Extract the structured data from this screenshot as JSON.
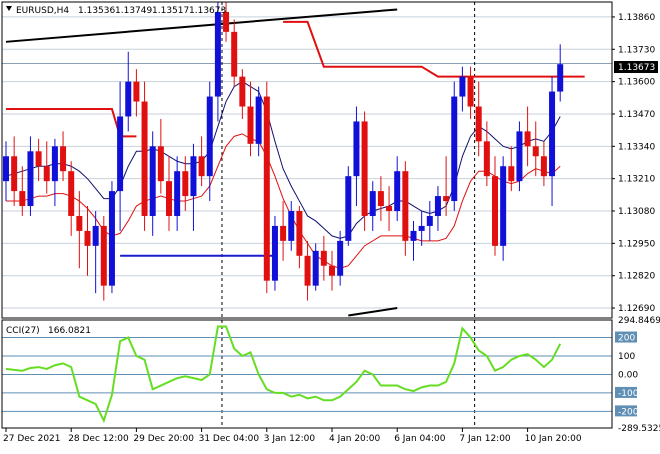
{
  "chart_data": [
    {
      "type": "candlestick",
      "symbol": "EURUSD,H4",
      "ohlc_header": [
        "1.13536",
        "1.13749",
        "1.13517",
        "1.13673"
      ],
      "current_price_label": "1.13673",
      "current_price": 1.13673,
      "ylim": [
        1.1265,
        1.1392
      ],
      "price_ticks": [
        {
          "value": 1.1386,
          "label": "1.13860"
        },
        {
          "value": 1.1373,
          "label": "1.13730"
        },
        {
          "value": 1.136,
          "label": "1.13600"
        },
        {
          "value": 1.1347,
          "label": "1.13470"
        },
        {
          "value": 1.1334,
          "label": "1.13340"
        },
        {
          "value": 1.1321,
          "label": "1.13210"
        },
        {
          "value": 1.1308,
          "label": "1.13080"
        },
        {
          "value": 1.1295,
          "label": "1.12950"
        },
        {
          "value": 1.1282,
          "label": "1.12820"
        },
        {
          "value": 1.1269,
          "label": "1.12690"
        }
      ],
      "x_labels": [
        {
          "index": 0,
          "label": "27 Dec 2021"
        },
        {
          "index": 8,
          "label": "28 Dec 12:00"
        },
        {
          "index": 16,
          "label": "29 Dec 20:00"
        },
        {
          "index": 24,
          "label": "31 Dec 04:00"
        },
        {
          "index": 32,
          "label": "3 Jan 12:00"
        },
        {
          "index": 40,
          "label": "4 Jan 20:00"
        },
        {
          "index": 48,
          "label": "6 Jan 04:00"
        },
        {
          "index": 56,
          "label": "7 Jan 12:00"
        },
        {
          "index": 64,
          "label": "10 Jan 20:00"
        }
      ],
      "separators": [
        26.5,
        57.5
      ],
      "candles": [
        [
          1.132,
          1.1336,
          1.1312,
          1.133
        ],
        [
          1.133,
          1.1338,
          1.131,
          1.1316
        ],
        [
          1.1316,
          1.1326,
          1.1306,
          1.131
        ],
        [
          1.131,
          1.1338,
          1.1306,
          1.1332
        ],
        [
          1.1332,
          1.1337,
          1.132,
          1.1326
        ],
        [
          1.1326,
          1.1336,
          1.1315,
          1.132
        ],
        [
          1.132,
          1.1337,
          1.131,
          1.1334
        ],
        [
          1.1334,
          1.134,
          1.132,
          1.1324
        ],
        [
          1.1324,
          1.1328,
          1.1298,
          1.1306
        ],
        [
          1.1306,
          1.1316,
          1.1285,
          1.13
        ],
        [
          1.13,
          1.131,
          1.1282,
          1.1294
        ],
        [
          1.1294,
          1.1308,
          1.1275,
          1.1302
        ],
        [
          1.1302,
          1.1306,
          1.1272,
          1.1278
        ],
        [
          1.1278,
          1.132,
          1.1275,
          1.1316
        ],
        [
          1.1316,
          1.136,
          1.13,
          1.1346
        ],
        [
          1.1346,
          1.1372,
          1.134,
          1.136
        ],
        [
          1.136,
          1.1365,
          1.1346,
          1.1352
        ],
        [
          1.1352,
          1.136,
          1.13,
          1.1306
        ],
        [
          1.1306,
          1.134,
          1.1298,
          1.1334
        ],
        [
          1.1334,
          1.1345,
          1.1315,
          1.132
        ],
        [
          1.132,
          1.133,
          1.13,
          1.1306
        ],
        [
          1.1306,
          1.133,
          1.13,
          1.1324
        ],
        [
          1.1324,
          1.133,
          1.1308,
          1.1314
        ],
        [
          1.1314,
          1.1335,
          1.13,
          1.133
        ],
        [
          1.133,
          1.1338,
          1.1318,
          1.1322
        ],
        [
          1.1322,
          1.136,
          1.1312,
          1.1354
        ],
        [
          1.1354,
          1.1392,
          1.1344,
          1.1388
        ],
        [
          1.1388,
          1.1392,
          1.1376,
          1.138
        ],
        [
          1.138,
          1.1385,
          1.1358,
          1.1362
        ],
        [
          1.1362,
          1.1365,
          1.1345,
          1.135
        ],
        [
          1.135,
          1.136,
          1.133,
          1.1335
        ],
        [
          1.1335,
          1.1358,
          1.133,
          1.1354
        ],
        [
          1.1354,
          1.136,
          1.1275,
          1.128
        ],
        [
          1.128,
          1.1306,
          1.1276,
          1.1302
        ],
        [
          1.1302,
          1.1312,
          1.1288,
          1.1296
        ],
        [
          1.1296,
          1.1312,
          1.1292,
          1.1308
        ],
        [
          1.1308,
          1.131,
          1.1285,
          1.129
        ],
        [
          1.129,
          1.1296,
          1.1272,
          1.1278
        ],
        [
          1.1278,
          1.1295,
          1.1276,
          1.1292
        ],
        [
          1.1292,
          1.1298,
          1.128,
          1.1286
        ],
        [
          1.1286,
          1.1292,
          1.1276,
          1.1282
        ],
        [
          1.1282,
          1.13,
          1.1278,
          1.1296
        ],
        [
          1.1296,
          1.1326,
          1.1294,
          1.1322
        ],
        [
          1.1322,
          1.135,
          1.131,
          1.1344
        ],
        [
          1.1344,
          1.1348,
          1.13,
          1.1306
        ],
        [
          1.1306,
          1.132,
          1.13,
          1.1316
        ],
        [
          1.1316,
          1.1322,
          1.1304,
          1.131
        ],
        [
          1.131,
          1.1318,
          1.13,
          1.1308
        ],
        [
          1.1308,
          1.133,
          1.1304,
          1.1324
        ],
        [
          1.1324,
          1.1328,
          1.129,
          1.1296
        ],
        [
          1.1296,
          1.1304,
          1.1288,
          1.13
        ],
        [
          1.13,
          1.1308,
          1.1294,
          1.1302
        ],
        [
          1.1302,
          1.1312,
          1.1296,
          1.1306
        ],
        [
          1.1306,
          1.1318,
          1.13,
          1.1314
        ],
        [
          1.1314,
          1.133,
          1.1306,
          1.1312
        ],
        [
          1.1312,
          1.136,
          1.1308,
          1.1354
        ],
        [
          1.1354,
          1.1366,
          1.1348,
          1.1362
        ],
        [
          1.1362,
          1.1366,
          1.1345,
          1.135
        ],
        [
          1.135,
          1.136,
          1.133,
          1.1336
        ],
        [
          1.1336,
          1.1344,
          1.1318,
          1.1322
        ],
        [
          1.1322,
          1.133,
          1.129,
          1.1294
        ],
        [
          1.1294,
          1.133,
          1.1288,
          1.1326
        ],
        [
          1.1326,
          1.1334,
          1.1316,
          1.132
        ],
        [
          1.132,
          1.1344,
          1.1316,
          1.134
        ],
        [
          1.134,
          1.135,
          1.1326,
          1.1334
        ],
        [
          1.1334,
          1.1344,
          1.1322,
          1.133
        ],
        [
          1.133,
          1.1336,
          1.1318,
          1.1322
        ],
        [
          1.1322,
          1.1362,
          1.131,
          1.1356
        ],
        [
          1.1356,
          1.1375,
          1.1352,
          1.1367
        ]
      ],
      "ma_blue": [
        1.1322,
        1.1323,
        1.1324,
        1.1325,
        1.1326,
        1.1326,
        1.1327,
        1.1327,
        1.1326,
        1.1324,
        1.1321,
        1.1317,
        1.1313,
        1.1313,
        1.1318,
        1.1326,
        1.1332,
        1.1332,
        1.1333,
        1.1332,
        1.133,
        1.1328,
        1.1327,
        1.1327,
        1.1328,
        1.1332,
        1.1342,
        1.1352,
        1.1358,
        1.136,
        1.1358,
        1.1356,
        1.1348,
        1.1336,
        1.1325,
        1.1318,
        1.1312,
        1.1306,
        1.1304,
        1.1301,
        1.1298,
        1.1297,
        1.1298,
        1.1303,
        1.1306,
        1.1308,
        1.1309,
        1.131,
        1.1312,
        1.1312,
        1.131,
        1.1308,
        1.1307,
        1.1308,
        1.131,
        1.1318,
        1.133,
        1.1338,
        1.1342,
        1.134,
        1.1337,
        1.1334,
        1.1333,
        1.1334,
        1.1336,
        1.1337,
        1.1336,
        1.134,
        1.1346
      ],
      "ma_red": [
        1.1312,
        1.1312,
        1.1312,
        1.1313,
        1.1314,
        1.1314,
        1.1315,
        1.1315,
        1.1314,
        1.1312,
        1.1309,
        1.1305,
        1.13,
        1.1298,
        1.1299,
        1.1304,
        1.131,
        1.1312,
        1.1313,
        1.1314,
        1.1313,
        1.1312,
        1.1312,
        1.1313,
        1.1314,
        1.1318,
        1.1326,
        1.1334,
        1.1338,
        1.1339,
        1.1337,
        1.1336,
        1.133,
        1.1322,
        1.1313,
        1.1306,
        1.13,
        1.1295,
        1.129,
        1.1288,
        1.1286,
        1.1285,
        1.1286,
        1.129,
        1.1294,
        1.1296,
        1.1298,
        1.1298,
        1.1298,
        1.1298,
        1.1297,
        1.1296,
        1.1296,
        1.1296,
        1.1297,
        1.1302,
        1.1312,
        1.132,
        1.1324,
        1.1324,
        1.1322,
        1.132,
        1.1319,
        1.132,
        1.1323,
        1.1325,
        1.1324,
        1.1323,
        1.1326
      ],
      "channel_upper": {
        "from": [
          0,
          1.1376
        ],
        "to": [
          48,
          1.1389
        ]
      },
      "channel_lower": {
        "from": [
          42,
          1.1266
        ],
        "to": [
          48,
          1.1269
        ]
      },
      "support_line": {
        "from": [
          14,
          1.129
        ],
        "to": [
          33,
          1.129
        ]
      },
      "step_line": [
        [
          0,
          1.1349
        ],
        [
          13,
          1.1349
        ],
        [
          14,
          1.1338
        ],
        [
          16,
          1.1338
        ],
        [
          null,
          null
        ],
        [
          34,
          1.1384
        ],
        [
          37,
          1.1384
        ],
        [
          39,
          1.1366
        ],
        [
          51,
          1.1366
        ],
        [
          53,
          1.1362
        ],
        [
          71,
          1.1362
        ]
      ]
    },
    {
      "type": "line",
      "name": "CCI(27)",
      "value_label": "166.0821",
      "ylim": [
        -290,
        295
      ],
      "ticks": [
        {
          "value": 294.8469,
          "label": "294.8469"
        },
        {
          "value": 200,
          "label": "200"
        },
        {
          "value": 100,
          "label": "100"
        },
        {
          "value": 0,
          "label": "0.00"
        },
        {
          "value": -100,
          "label": "-100"
        },
        {
          "value": -200,
          "label": "-200"
        },
        {
          "value": -289.5325,
          "label": "-289.5325"
        }
      ],
      "values": [
        30,
        25,
        20,
        35,
        40,
        30,
        50,
        60,
        40,
        -120,
        -140,
        -160,
        -250,
        -110,
        180,
        200,
        100,
        80,
        -80,
        -60,
        -40,
        -20,
        -10,
        -20,
        -30,
        0,
        260,
        260,
        140,
        100,
        120,
        0,
        -80,
        -100,
        -100,
        -120,
        -110,
        -130,
        -120,
        -140,
        -140,
        -120,
        -80,
        -40,
        20,
        0,
        -60,
        -60,
        -60,
        -80,
        -90,
        -70,
        -60,
        -60,
        -40,
        60,
        250,
        200,
        130,
        100,
        20,
        40,
        80,
        100,
        110,
        80,
        40,
        80,
        166
      ]
    }
  ]
}
